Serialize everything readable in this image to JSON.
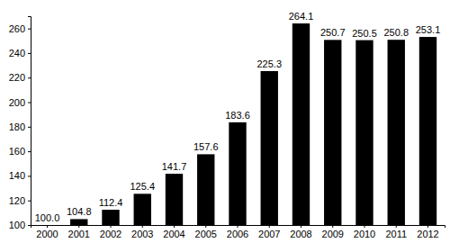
{
  "chart_data": {
    "type": "bar",
    "categories": [
      "2000",
      "2001",
      "2002",
      "2003",
      "2004",
      "2005",
      "2006",
      "2007",
      "2008",
      "2009",
      "2010",
      "2011",
      "2012"
    ],
    "values": [
      100.0,
      104.8,
      112.4,
      125.4,
      141.7,
      157.6,
      183.6,
      225.3,
      264.1,
      250.7,
      250.5,
      250.8,
      253.1
    ],
    "value_labels": [
      "100.0",
      "104.8",
      "112.4",
      "125.4",
      "141.7",
      "157.6",
      "183.6",
      "225.3",
      "264.1",
      "250.7",
      "250.5",
      "250.8",
      "253.1"
    ],
    "color": "#000000",
    "data_labels": true,
    "ylim": [
      100,
      270
    ],
    "yticks": [
      100,
      120,
      140,
      160,
      180,
      200,
      220,
      240,
      260
    ],
    "grid": false
  }
}
